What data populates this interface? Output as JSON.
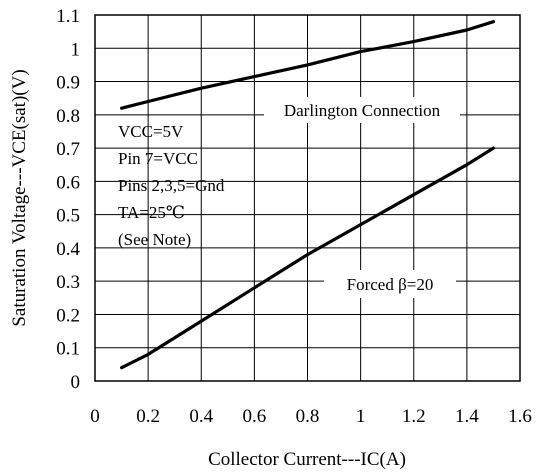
{
  "chart_data": {
    "type": "line",
    "xlabel": "Collector Current---IC(A)",
    "ylabel": "Saturation Voltage---VCE(sat)(V)",
    "xlim": [
      0,
      1.6
    ],
    "ylim": [
      0,
      1.1
    ],
    "x_ticks": [
      "0",
      "0.2",
      "0.4",
      "0.6",
      "0.8",
      "1",
      "1.2",
      "1.4",
      "1.6"
    ],
    "y_ticks": [
      "0",
      "0.1",
      "0.2",
      "0.3",
      "0.4",
      "0.5",
      "0.6",
      "0.7",
      "0.8",
      "0.9",
      "1",
      "1.1"
    ],
    "grid": true,
    "series": [
      {
        "name": "Darlington Connection",
        "x": [
          0.1,
          0.2,
          0.4,
          0.6,
          0.8,
          1.0,
          1.2,
          1.4,
          1.5
        ],
        "y": [
          0.82,
          0.84,
          0.88,
          0.915,
          0.95,
          0.99,
          1.02,
          1.055,
          1.08
        ]
      },
      {
        "name": "Forced β=20",
        "x": [
          0.1,
          0.2,
          0.4,
          0.6,
          0.8,
          1.0,
          1.2,
          1.4,
          1.5
        ],
        "y": [
          0.04,
          0.08,
          0.18,
          0.28,
          0.38,
          0.47,
          0.56,
          0.65,
          0.7
        ]
      }
    ],
    "annotations": [
      "VCC=5V",
      "Pin 7=VCC",
      "Pins 2,3,5=Gnd",
      "TA=25℃",
      "(See Note)"
    ]
  }
}
